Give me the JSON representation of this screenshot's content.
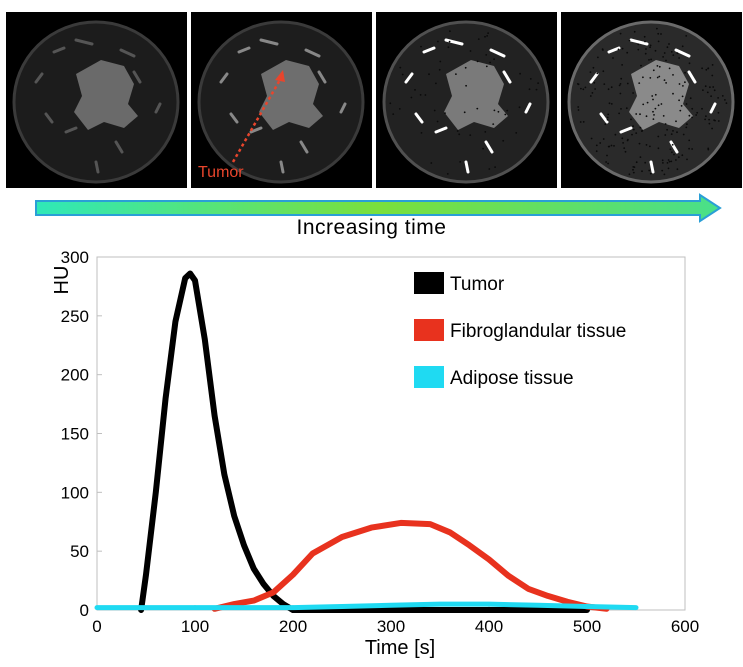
{
  "panels": {
    "count": 4,
    "tumor_annotation": "Tumor",
    "caption": "Increasing time",
    "arrow_color": "#7ae03c",
    "annotation_color": "#e8452c"
  },
  "chart_data": {
    "type": "line",
    "title": "",
    "xlabel": "Time [s]",
    "ylabel": "HU",
    "xlim": [
      0,
      600
    ],
    "ylim": [
      0,
      300
    ],
    "xticks": [
      0,
      100,
      200,
      300,
      400,
      500,
      600
    ],
    "yticks": [
      0,
      50,
      100,
      150,
      200,
      250,
      300
    ],
    "grid": false,
    "legend_placement": "top-right",
    "series": [
      {
        "name": "Tumor",
        "color": "#000000",
        "x": [
          45,
          50,
          60,
          70,
          80,
          90,
          95,
          100,
          110,
          120,
          130,
          140,
          150,
          160,
          170,
          180,
          190,
          200,
          300,
          400,
          500
        ],
        "y": [
          0,
          30,
          100,
          180,
          245,
          282,
          286,
          280,
          230,
          165,
          115,
          80,
          55,
          35,
          22,
          12,
          5,
          0,
          0,
          0,
          0
        ]
      },
      {
        "name": "Fibroglandular tissue",
        "color": "#e8321e",
        "x": [
          120,
          140,
          160,
          180,
          200,
          220,
          250,
          280,
          310,
          340,
          360,
          380,
          400,
          420,
          440,
          460,
          480,
          500,
          520
        ],
        "y": [
          1,
          5,
          8,
          15,
          30,
          48,
          62,
          70,
          74,
          73,
          66,
          55,
          43,
          29,
          18,
          12,
          7,
          3,
          1
        ]
      },
      {
        "name": "Adipose tissue",
        "color": "#1fdaf2",
        "x": [
          0,
          100,
          200,
          250,
          300,
          350,
          400,
          450,
          500,
          550
        ],
        "y": [
          2,
          2,
          2,
          3,
          4,
          5,
          5,
          4,
          3,
          2
        ]
      }
    ]
  }
}
